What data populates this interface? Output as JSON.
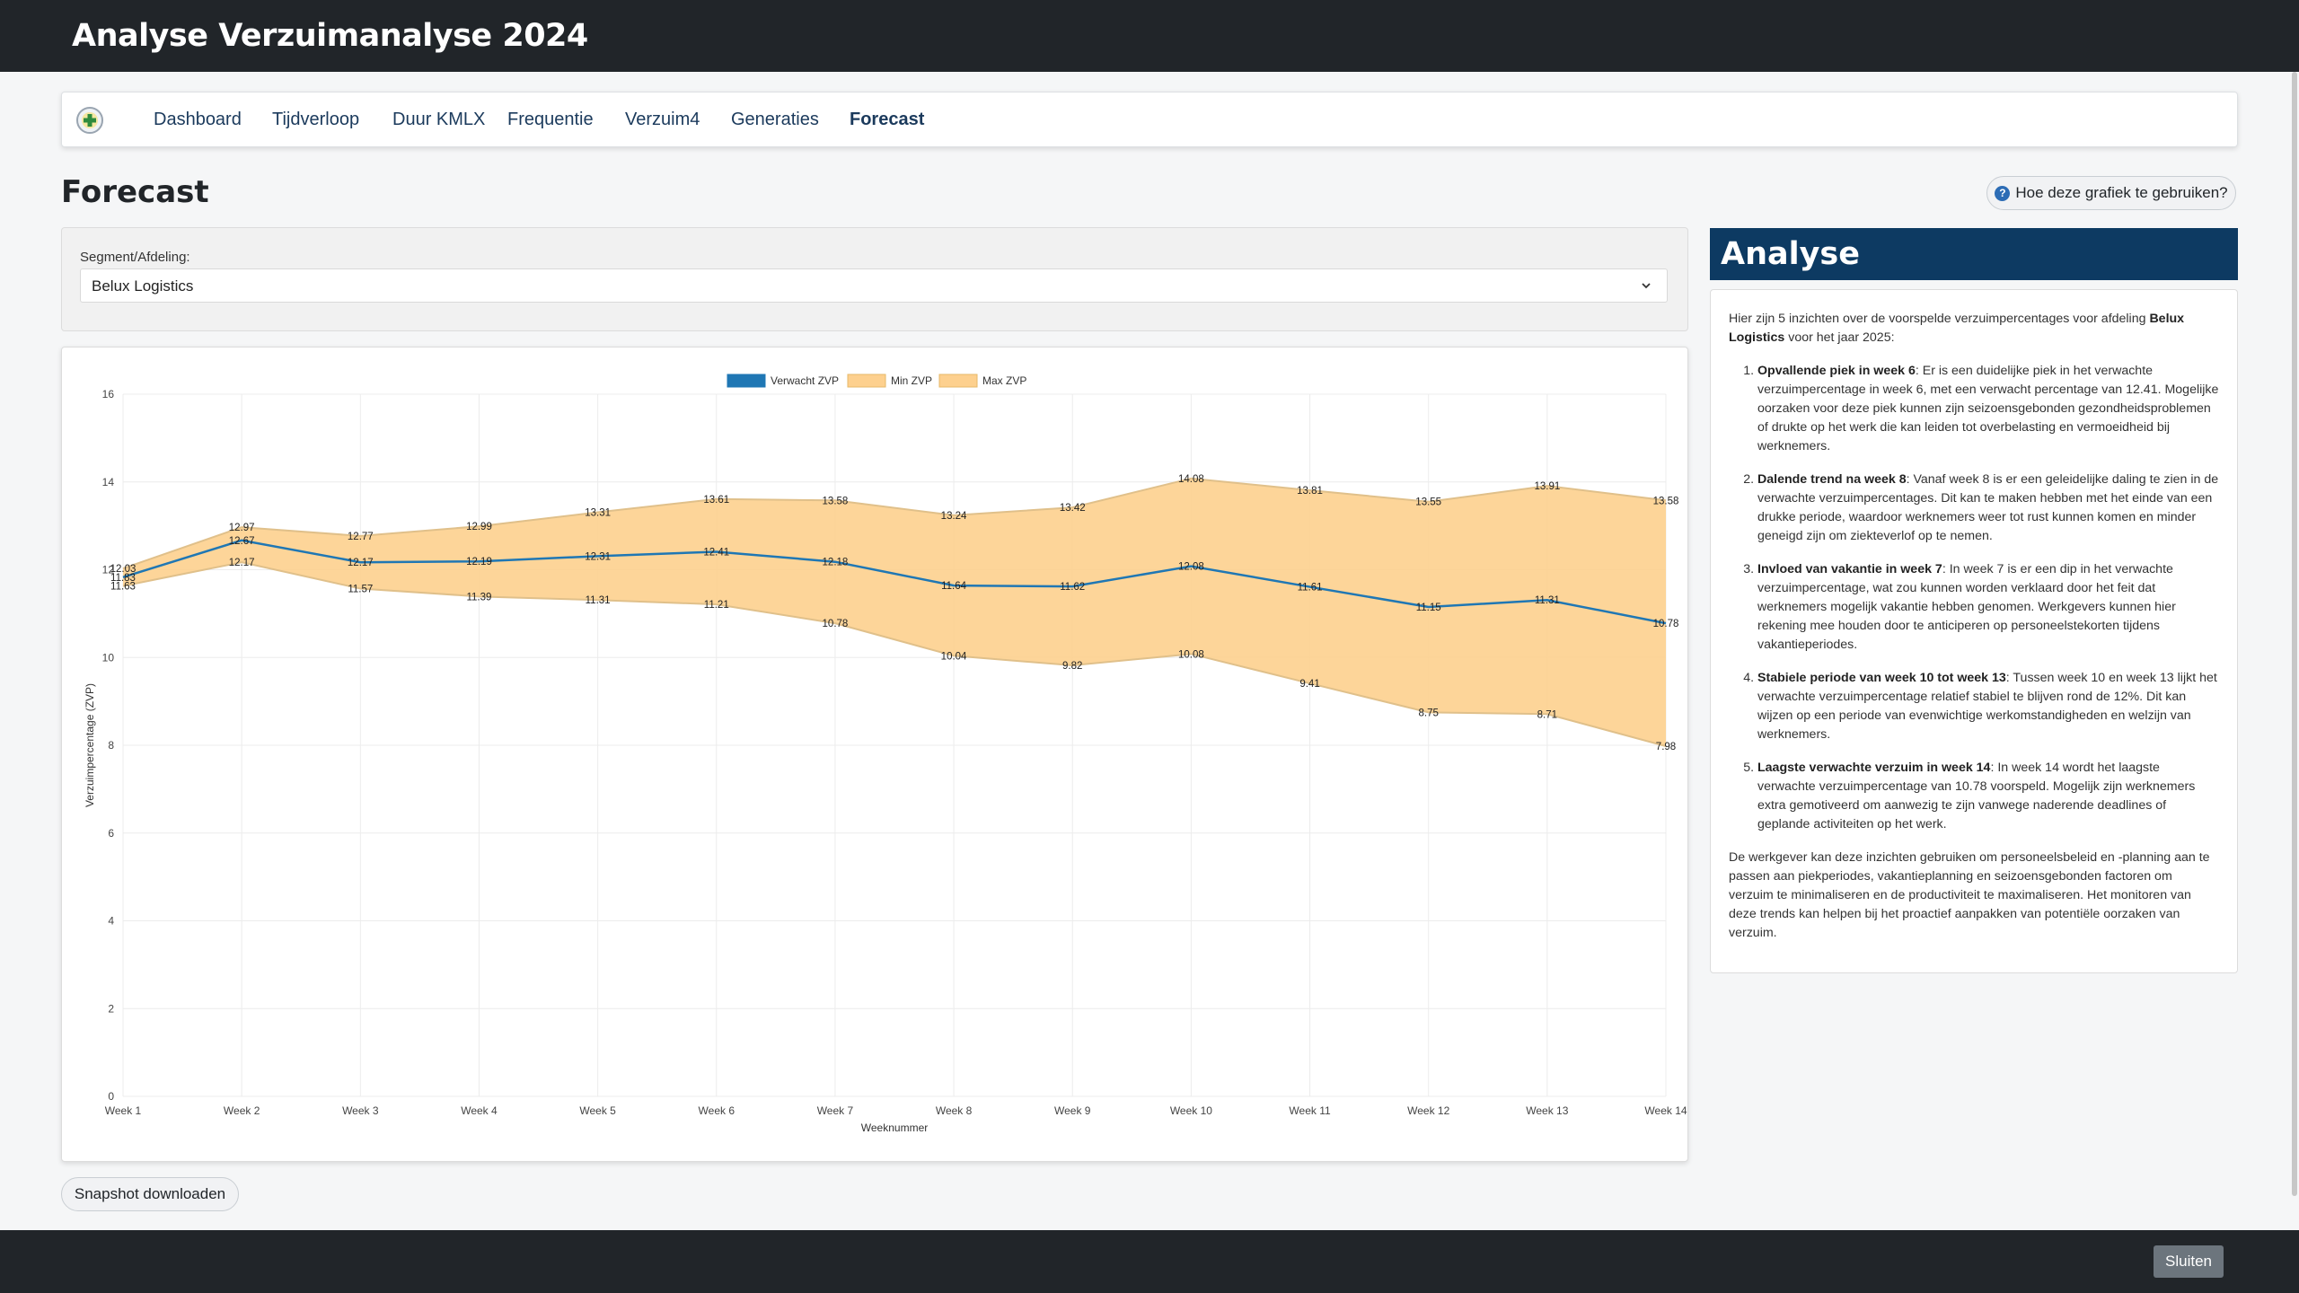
{
  "app": {
    "title": "Analyse Verzuimanalyse 2024"
  },
  "nav": {
    "items": [
      {
        "label": "Dashboard"
      },
      {
        "label": "Tijdverloop"
      },
      {
        "label": "Duur KMLX"
      },
      {
        "label": "Frequentie"
      },
      {
        "label": "Verzuim4"
      },
      {
        "label": "Generaties"
      },
      {
        "label": "Forecast"
      }
    ],
    "active": "Forecast"
  },
  "page": {
    "title": "Forecast",
    "help_label": "Hoe deze grafiek te gebruiken?",
    "help_icon": "question-circle-icon",
    "snapshot_label": "Snapshot downloaden"
  },
  "segment": {
    "label": "Segment/Afdeling:",
    "value": "Belux Logistics"
  },
  "chart_data": {
    "type": "line",
    "xlabel": "Weeknummer",
    "ylabel": "Verzuimpercentage (ZVP)",
    "ylim": [
      0,
      16
    ],
    "yticks": [
      "0",
      "2",
      "4",
      "6",
      "8",
      "10",
      "12",
      "14",
      "16"
    ],
    "grid": true,
    "legend_position": "top-center",
    "categories": [
      "Week 1",
      "Week 2",
      "Week 3",
      "Week 4",
      "Week 5",
      "Week 6",
      "Week 7",
      "Week 8",
      "Week 9",
      "Week 10",
      "Week 11",
      "Week 12",
      "Week 13",
      "Week 14"
    ],
    "series": [
      {
        "name": "Verwacht ZVP",
        "color": "#1f77b4",
        "values": [
          11.83,
          12.67,
          12.17,
          12.19,
          12.31,
          12.41,
          12.18,
          11.64,
          11.62,
          12.08,
          11.61,
          11.15,
          11.31,
          10.78
        ]
      },
      {
        "name": "Min ZVP",
        "color": "#fdd08e",
        "values": [
          11.63,
          12.17,
          11.57,
          11.39,
          11.31,
          11.21,
          10.78,
          10.04,
          9.82,
          10.08,
          9.41,
          8.75,
          8.71,
          7.98
        ]
      },
      {
        "name": "Max ZVP",
        "color": "#fdd08e",
        "values": [
          12.03,
          12.97,
          12.77,
          12.99,
          13.31,
          13.61,
          13.58,
          13.24,
          13.42,
          14.08,
          13.81,
          13.55,
          13.91,
          13.58
        ]
      }
    ]
  },
  "analyse": {
    "title": "Analyse",
    "intro_pre": "Hier zijn 5 inzichten over de voorspelde verzuimpercentages voor afdeling ",
    "intro_bold": "Belux Logistics",
    "intro_post": " voor het jaar 2025:",
    "insights": [
      {
        "title": "Opvallende piek in week 6",
        "text": ": Er is een duidelijke piek in het verwachte verzuimpercentage in week 6, met een verwacht percentage van 12.41. Mogelijke oorzaken voor deze piek kunnen zijn seizoensgebonden gezondheidsproblemen of drukte op het werk die kan leiden tot overbelasting en vermoeidheid bij werknemers."
      },
      {
        "title": "Dalende trend na week 8",
        "text": ": Vanaf week 8 is er een geleidelijke daling te zien in de verwachte verzuimpercentages. Dit kan te maken hebben met het einde van een drukke periode, waardoor werknemers weer tot rust kunnen komen en minder geneigd zijn om ziekteverlof op te nemen."
      },
      {
        "title": "Invloed van vakantie in week 7",
        "text": ": In week 7 is er een dip in het verwachte verzuimpercentage, wat zou kunnen worden verklaard door het feit dat werknemers mogelijk vakantie hebben genomen. Werkgevers kunnen hier rekening mee houden door te anticiperen op personeelstekorten tijdens vakantieperiodes."
      },
      {
        "title": "Stabiele periode van week 10 tot week 13",
        "text": ": Tussen week 10 en week 13 lijkt het verwachte verzuimpercentage relatief stabiel te blijven rond de 12%. Dit kan wijzen op een periode van evenwichtige werkomstandigheden en welzijn van werknemers."
      },
      {
        "title": "Laagste verwachte verzuim in week 14",
        "text": ": In week 14 wordt het laagste verwachte verzuimpercentage van 10.78 voorspeld. Mogelijk zijn werknemers extra gemotiveerd om aanwezig te zijn vanwege naderende deadlines of geplande activiteiten op het werk."
      }
    ],
    "outro": "De werkgever kan deze inzichten gebruiken om personeelsbeleid en -planning aan te passen aan piekperiodes, vakantieplanning en seizoensgebonden factoren om verzuim te minimaliseren en de productiviteit te maximaliseren. Het monitoren van deze trends kan helpen bij het proactief aanpakken van potentiële oorzaken van verzuim."
  },
  "footer": {
    "close_label": "Sluiten"
  },
  "colors": {
    "header_bg": "#212529",
    "analyse_bg": "#0d3a62",
    "line": "#1f77b4",
    "band": "#fdd08e"
  }
}
